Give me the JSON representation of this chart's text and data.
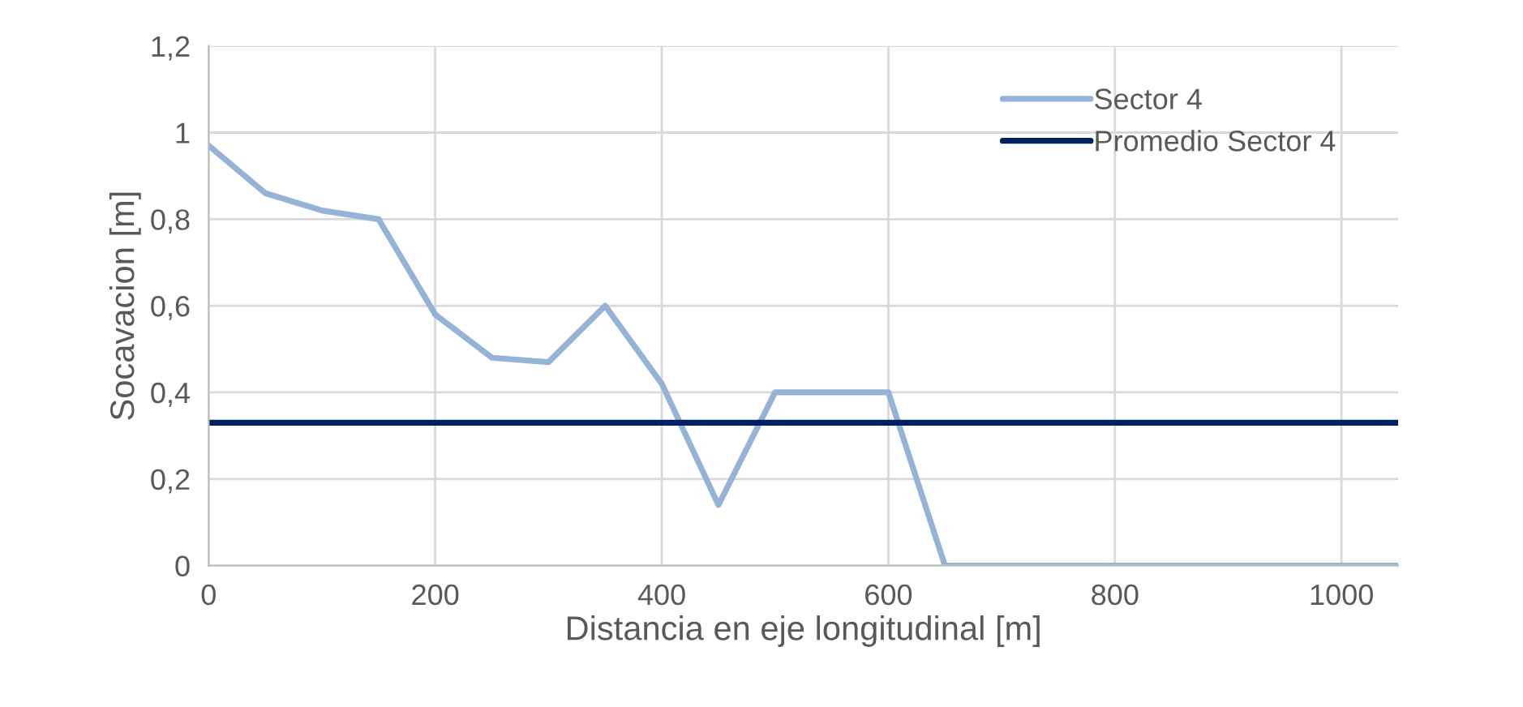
{
  "chart_data": {
    "type": "line",
    "xlabel": "Distancia en eje longitudinal [m]",
    "ylabel": "Socavacion [m]",
    "x": [
      0,
      50,
      100,
      150,
      200,
      250,
      300,
      350,
      400,
      450,
      500,
      550,
      600,
      650,
      700,
      750,
      800,
      850,
      900,
      950,
      1000,
      1050
    ],
    "series": [
      {
        "name": "Sector 4",
        "color": "#95b3d7",
        "values": [
          0.97,
          0.86,
          0.82,
          0.8,
          0.58,
          0.48,
          0.47,
          0.6,
          0.42,
          0.14,
          0.4,
          0.4,
          0.4,
          0,
          0,
          0,
          0,
          0,
          0,
          0,
          0,
          0
        ]
      },
      {
        "name": "Promedio Sector 4",
        "color": "#002060",
        "x": [
          0,
          1050
        ],
        "values": [
          0.33,
          0.33
        ]
      }
    ],
    "xlim": [
      0,
      1050
    ],
    "xticks": [
      0,
      200,
      400,
      600,
      800,
      1000
    ],
    "ylim": [
      0,
      1.2
    ],
    "yticks": [
      {
        "value": 0,
        "label": "0"
      },
      {
        "value": 0.2,
        "label": "0,2"
      },
      {
        "value": 0.4,
        "label": "0,4"
      },
      {
        "value": 0.6,
        "label": "0,6"
      },
      {
        "value": 0.8,
        "label": "0,8"
      },
      {
        "value": 1,
        "label": "1"
      },
      {
        "value": 1.2,
        "label": "1,2"
      }
    ],
    "grid": true,
    "legend": "top right",
    "line_style": "solid",
    "marker": "none"
  }
}
